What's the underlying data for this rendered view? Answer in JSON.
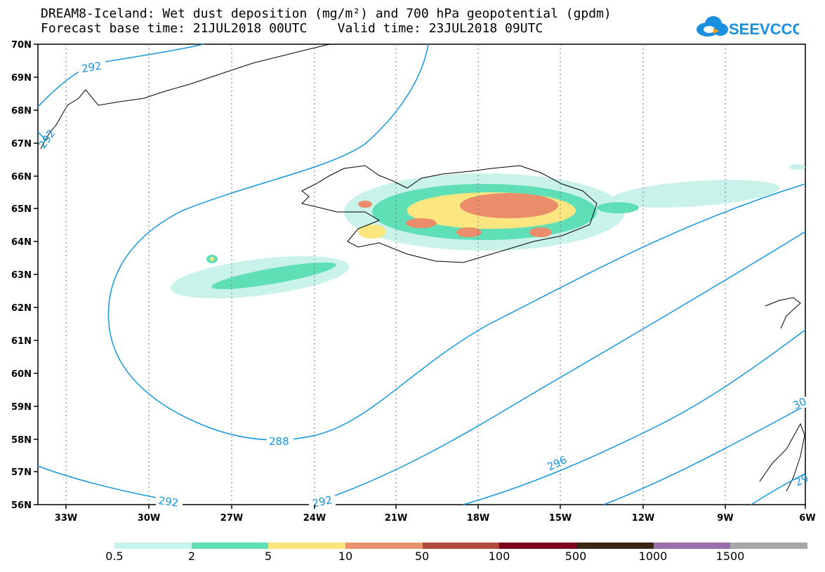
{
  "header": {
    "title_line1": "DREAM8-Iceland: Wet dust deposition (mg/m²) and 700 hPa geopotential (gpdm)",
    "title_line2": "Forecast base time: 21JUL2018 00UTC    Valid time: 23JUL2018 09UTC"
  },
  "logo": {
    "text": "SEEVCCC",
    "color": "#1a8fe0"
  },
  "map": {
    "lat_labels": [
      "70N",
      "69N",
      "68N",
      "67N",
      "66N",
      "65N",
      "64N",
      "63N",
      "62N",
      "61N",
      "60N",
      "59N",
      "58N",
      "57N",
      "56N"
    ],
    "lon_labels": [
      "33W",
      "30W",
      "27W",
      "24W",
      "21W",
      "18W",
      "15W",
      "12W",
      "9W",
      "6W"
    ],
    "contour_labels": [
      "292",
      "292",
      "292",
      "288",
      "296",
      "30",
      "29",
      "292"
    ],
    "contour_color": "#1596e0",
    "deposition_colors": [
      "#bff0e6",
      "#5fe0b6",
      "#fbe680",
      "#eb8c6a"
    ]
  },
  "legend": {
    "colors": [
      "#c6f3ec",
      "#5ee0b4",
      "#fbe47c",
      "#e9946e",
      "#b04a3c",
      "#7d001e",
      "#3a2614",
      "#9a6eaa",
      "#a8a8a8"
    ],
    "labels": [
      "0.5",
      "2",
      "5",
      "10",
      "50",
      "100",
      "500",
      "1000",
      "1500"
    ]
  }
}
